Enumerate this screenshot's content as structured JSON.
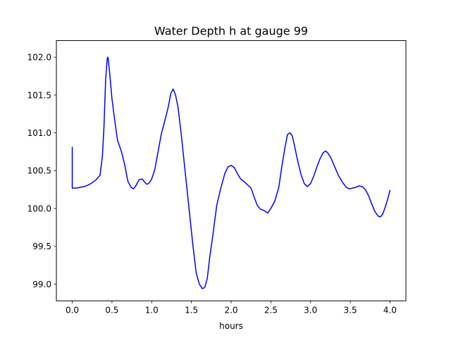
{
  "chart_data": {
    "type": "line",
    "title": "Water Depth h at gauge 99",
    "xlabel": "hours",
    "ylabel": "",
    "xlim": [
      -0.2,
      4.2
    ],
    "ylim": [
      98.78,
      102.22
    ],
    "x_ticks": [
      0.0,
      0.5,
      1.0,
      1.5,
      2.0,
      2.5,
      3.0,
      3.5,
      4.0
    ],
    "x_tick_labels": [
      "0.0",
      "0.5",
      "1.0",
      "1.5",
      "2.0",
      "2.5",
      "3.0",
      "3.5",
      "4.0"
    ],
    "y_ticks": [
      99.0,
      99.5,
      100.0,
      100.5,
      101.0,
      101.5,
      102.0
    ],
    "y_tick_labels": [
      "99.0",
      "99.5",
      "100.0",
      "100.5",
      "101.0",
      "101.5",
      "102.0"
    ],
    "grid": false,
    "legend": "none",
    "series": [
      {
        "color": "#0000ff",
        "x": [
          0.0,
          0.0,
          0.05,
          0.1,
          0.15,
          0.2,
          0.25,
          0.3,
          0.35,
          0.38,
          0.4,
          0.42,
          0.44,
          0.45,
          0.47,
          0.5,
          0.53,
          0.57,
          0.62,
          0.66,
          0.7,
          0.74,
          0.77,
          0.8,
          0.84,
          0.88,
          0.91,
          0.94,
          0.97,
          1.0,
          1.04,
          1.08,
          1.12,
          1.17,
          1.21,
          1.24,
          1.27,
          1.3,
          1.33,
          1.37,
          1.42,
          1.47,
          1.52,
          1.56,
          1.6,
          1.64,
          1.67,
          1.7,
          1.73,
          1.77,
          1.82,
          1.87,
          1.92,
          1.96,
          2.0,
          2.04,
          2.08,
          2.12,
          2.16,
          2.2,
          2.25,
          2.29,
          2.33,
          2.37,
          2.42,
          2.46,
          2.5,
          2.55,
          2.6,
          2.64,
          2.68,
          2.71,
          2.74,
          2.77,
          2.8,
          2.84,
          2.88,
          2.92,
          2.96,
          3.0,
          3.04,
          3.08,
          3.12,
          3.16,
          3.19,
          3.22,
          3.26,
          3.3,
          3.35,
          3.4,
          3.45,
          3.49,
          3.53,
          3.57,
          3.61,
          3.65,
          3.69,
          3.73,
          3.77,
          3.81,
          3.85,
          3.88,
          3.91,
          3.94,
          3.97,
          4.0
        ],
        "y": [
          100.81,
          100.27,
          100.27,
          100.28,
          100.29,
          100.31,
          100.34,
          100.38,
          100.44,
          100.7,
          101.1,
          101.7,
          101.98,
          102.0,
          101.8,
          101.45,
          101.2,
          100.9,
          100.75,
          100.58,
          100.36,
          100.28,
          100.26,
          100.3,
          100.38,
          100.39,
          100.35,
          100.32,
          100.34,
          100.39,
          100.52,
          100.75,
          100.98,
          101.18,
          101.35,
          101.52,
          101.58,
          101.5,
          101.35,
          101.0,
          100.5,
          100.0,
          99.5,
          99.15,
          99.0,
          98.94,
          98.96,
          99.08,
          99.35,
          99.65,
          100.05,
          100.27,
          100.46,
          100.55,
          100.57,
          100.54,
          100.46,
          100.39,
          100.36,
          100.32,
          100.27,
          100.15,
          100.04,
          99.99,
          99.97,
          99.94,
          100.0,
          100.1,
          100.28,
          100.57,
          100.82,
          100.98,
          101.0,
          100.96,
          100.82,
          100.62,
          100.45,
          100.33,
          100.29,
          100.33,
          100.43,
          100.55,
          100.66,
          100.74,
          100.76,
          100.73,
          100.66,
          100.56,
          100.44,
          100.35,
          100.28,
          100.26,
          100.27,
          100.28,
          100.3,
          100.29,
          100.25,
          100.17,
          100.06,
          99.96,
          99.9,
          99.89,
          99.93,
          100.02,
          100.12,
          100.24
        ]
      }
    ]
  }
}
